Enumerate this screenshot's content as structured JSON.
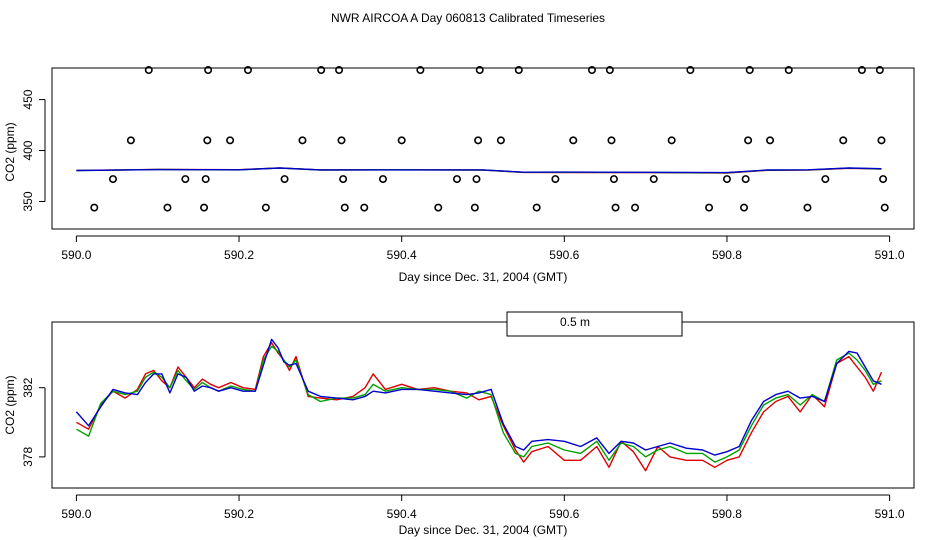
{
  "page_title": "NWR AIRCOA A  Day 060813  Calibrated Timeseries",
  "colors": {
    "red": "#dd0000",
    "green": "#00a000",
    "blue": "#0000cc",
    "axis": "#000000"
  },
  "chart_data": [
    {
      "type": "scatter+line",
      "title": "",
      "xlabel": "Day since Dec. 31, 2004 (GMT)",
      "ylabel": "CO2 (ppm)",
      "xlim": [
        589.97,
        591.03
      ],
      "ylim": [
        323,
        481
      ],
      "x_ticks": [
        590.0,
        590.2,
        590.4,
        590.6,
        590.8,
        591.0
      ],
      "x_tick_labels": [
        "590.0",
        "590.2",
        "590.4",
        "590.6",
        "590.8",
        "591.0"
      ],
      "y_ticks": [
        350,
        400,
        450
      ],
      "y_tick_labels": [
        "350",
        "400",
        "450"
      ],
      "scatter_points": [
        {
          "x": 590.022,
          "y": 344
        },
        {
          "x": 590.045,
          "y": 372
        },
        {
          "x": 590.067,
          "y": 410
        },
        {
          "x": 590.089,
          "y": 479
        },
        {
          "x": 590.112,
          "y": 344
        },
        {
          "x": 590.134,
          "y": 372
        },
        {
          "x": 590.157,
          "y": 344
        },
        {
          "x": 590.159,
          "y": 372
        },
        {
          "x": 590.161,
          "y": 410
        },
        {
          "x": 590.162,
          "y": 479
        },
        {
          "x": 590.189,
          "y": 410
        },
        {
          "x": 590.211,
          "y": 479
        },
        {
          "x": 590.233,
          "y": 344
        },
        {
          "x": 590.256,
          "y": 372
        },
        {
          "x": 590.278,
          "y": 410
        },
        {
          "x": 590.301,
          "y": 479
        },
        {
          "x": 590.323,
          "y": 479
        },
        {
          "x": 590.326,
          "y": 410
        },
        {
          "x": 590.328,
          "y": 372
        },
        {
          "x": 590.33,
          "y": 344
        },
        {
          "x": 590.354,
          "y": 344
        },
        {
          "x": 590.377,
          "y": 372
        },
        {
          "x": 590.4,
          "y": 410
        },
        {
          "x": 590.423,
          "y": 479
        },
        {
          "x": 590.445,
          "y": 344
        },
        {
          "x": 590.468,
          "y": 372
        },
        {
          "x": 590.49,
          "y": 344
        },
        {
          "x": 590.492,
          "y": 372
        },
        {
          "x": 590.494,
          "y": 410
        },
        {
          "x": 590.496,
          "y": 479
        },
        {
          "x": 590.522,
          "y": 410
        },
        {
          "x": 590.544,
          "y": 479
        },
        {
          "x": 590.566,
          "y": 344
        },
        {
          "x": 590.589,
          "y": 372
        },
        {
          "x": 590.611,
          "y": 410
        },
        {
          "x": 590.634,
          "y": 479
        },
        {
          "x": 590.656,
          "y": 479
        },
        {
          "x": 590.658,
          "y": 410
        },
        {
          "x": 590.661,
          "y": 372
        },
        {
          "x": 590.663,
          "y": 344
        },
        {
          "x": 590.687,
          "y": 344
        },
        {
          "x": 590.71,
          "y": 372
        },
        {
          "x": 590.732,
          "y": 410
        },
        {
          "x": 590.755,
          "y": 479
        },
        {
          "x": 590.778,
          "y": 344
        },
        {
          "x": 590.8,
          "y": 372
        },
        {
          "x": 590.821,
          "y": 344
        },
        {
          "x": 590.823,
          "y": 372
        },
        {
          "x": 590.826,
          "y": 410
        },
        {
          "x": 590.828,
          "y": 479
        },
        {
          "x": 590.853,
          "y": 410
        },
        {
          "x": 590.876,
          "y": 479
        },
        {
          "x": 590.899,
          "y": 344
        },
        {
          "x": 590.921,
          "y": 372
        },
        {
          "x": 590.943,
          "y": 410
        },
        {
          "x": 590.966,
          "y": 479
        },
        {
          "x": 590.988,
          "y": 479
        },
        {
          "x": 590.99,
          "y": 410
        },
        {
          "x": 590.992,
          "y": 372
        },
        {
          "x": 590.994,
          "y": 344
        }
      ],
      "series": [
        {
          "name": "red",
          "color": "#dd0000",
          "x": [
            590.0,
            590.1,
            590.2,
            590.25,
            590.3,
            590.4,
            590.5,
            590.55,
            590.6,
            590.7,
            590.8,
            590.85,
            590.9,
            590.95,
            590.99
          ],
          "y": [
            380.5,
            381.5,
            381.2,
            383.0,
            381.0,
            381.2,
            380.8,
            378.5,
            378.4,
            378.3,
            378.0,
            380.6,
            380.8,
            382.6,
            381.8
          ]
        },
        {
          "name": "green",
          "color": "#00a000",
          "x": [
            590.0,
            590.1,
            590.2,
            590.25,
            590.3,
            590.4,
            590.5,
            590.55,
            590.6,
            590.7,
            590.8,
            590.85,
            590.9,
            590.95,
            590.99
          ],
          "y": [
            380.3,
            381.4,
            381.0,
            382.8,
            380.9,
            381.1,
            380.9,
            378.6,
            378.6,
            378.5,
            378.2,
            380.8,
            381.0,
            382.8,
            382.0
          ]
        },
        {
          "name": "blue",
          "color": "#0000cc",
          "x": [
            590.0,
            590.1,
            590.2,
            590.25,
            590.3,
            590.4,
            590.5,
            590.55,
            590.6,
            590.7,
            590.8,
            590.85,
            590.9,
            590.95,
            590.99
          ],
          "y": [
            380.4,
            381.3,
            381.1,
            382.9,
            381.0,
            381.0,
            381.0,
            378.7,
            378.8,
            378.6,
            378.3,
            380.9,
            381.1,
            382.9,
            382.2
          ]
        }
      ]
    },
    {
      "type": "line",
      "title": "",
      "xlabel": "Day since Dec. 31, 2004 (GMT)",
      "ylabel": "CO2 (ppm)",
      "xlim": [
        589.97,
        591.03
      ],
      "ylim": [
        376.2,
        385.8
      ],
      "x_ticks": [
        590.0,
        590.2,
        590.4,
        590.6,
        590.8,
        591.0
      ],
      "x_tick_labels": [
        "590.0",
        "590.2",
        "590.4",
        "590.6",
        "590.8",
        "591.0"
      ],
      "y_ticks": [
        378,
        382
      ],
      "y_tick_labels": [
        "378",
        "382"
      ],
      "legend_text": "0.5 m",
      "legend_position": "top-center",
      "series": [
        {
          "name": "red",
          "color": "#dd0000",
          "x": [
            590.0,
            590.015,
            590.03,
            590.045,
            590.06,
            590.075,
            590.085,
            590.095,
            590.105,
            590.115,
            590.125,
            590.135,
            590.145,
            590.155,
            590.165,
            590.175,
            590.19,
            590.205,
            590.22,
            590.23,
            590.24,
            590.248,
            590.255,
            590.262,
            590.27,
            590.285,
            590.3,
            590.32,
            590.34,
            590.355,
            590.365,
            590.38,
            590.4,
            590.42,
            590.44,
            590.46,
            590.48,
            590.495,
            590.51,
            590.525,
            590.54,
            590.55,
            590.56,
            590.58,
            590.6,
            590.62,
            590.64,
            590.655,
            590.67,
            590.685,
            590.7,
            590.715,
            590.73,
            590.75,
            590.77,
            590.785,
            590.8,
            590.815,
            590.83,
            590.845,
            590.86,
            590.875,
            590.89,
            590.905,
            590.92,
            590.935,
            590.95,
            590.96,
            590.97,
            590.98,
            590.99
          ],
          "y": [
            380.0,
            379.6,
            381.0,
            381.8,
            381.4,
            381.9,
            382.8,
            383.0,
            382.4,
            382.0,
            383.2,
            382.6,
            382.0,
            382.5,
            382.2,
            382.0,
            382.3,
            382.0,
            381.9,
            383.8,
            384.6,
            384.0,
            383.6,
            383.0,
            383.8,
            381.5,
            381.4,
            381.3,
            381.5,
            382.0,
            382.8,
            381.9,
            382.2,
            381.9,
            382.0,
            381.8,
            381.7,
            381.3,
            381.5,
            379.8,
            378.4,
            377.7,
            378.3,
            378.6,
            377.8,
            377.8,
            378.6,
            377.4,
            378.9,
            378.3,
            377.2,
            378.6,
            378.0,
            377.8,
            377.8,
            377.4,
            377.8,
            378.0,
            379.4,
            380.6,
            381.2,
            381.5,
            380.6,
            381.6,
            380.9,
            383.4,
            383.8,
            383.2,
            382.6,
            381.8,
            382.9
          ]
        },
        {
          "name": "green",
          "color": "#00a000",
          "x": [
            590.0,
            590.015,
            590.03,
            590.045,
            590.06,
            590.075,
            590.085,
            590.095,
            590.105,
            590.115,
            590.125,
            590.135,
            590.145,
            590.155,
            590.165,
            590.175,
            590.19,
            590.205,
            590.22,
            590.23,
            590.24,
            590.248,
            590.255,
            590.262,
            590.27,
            590.285,
            590.3,
            590.32,
            590.34,
            590.355,
            590.365,
            590.38,
            590.4,
            590.42,
            590.44,
            590.46,
            590.48,
            590.495,
            590.51,
            590.525,
            590.54,
            590.55,
            590.56,
            590.58,
            590.6,
            590.62,
            590.64,
            590.655,
            590.67,
            590.685,
            590.7,
            590.715,
            590.73,
            590.75,
            590.77,
            590.785,
            590.8,
            590.815,
            590.83,
            590.845,
            590.86,
            590.875,
            590.89,
            590.905,
            590.92,
            590.935,
            590.95,
            590.96,
            590.97,
            590.98,
            590.99
          ],
          "y": [
            379.6,
            379.2,
            381.1,
            381.8,
            381.6,
            381.8,
            382.6,
            382.9,
            382.6,
            382.0,
            383.0,
            382.4,
            381.9,
            382.3,
            382.0,
            381.8,
            382.1,
            381.9,
            381.8,
            383.6,
            384.4,
            384.1,
            383.6,
            383.2,
            383.6,
            381.6,
            381.2,
            381.4,
            381.4,
            381.6,
            382.2,
            381.8,
            382.0,
            381.9,
            381.9,
            381.8,
            381.4,
            381.8,
            381.6,
            379.4,
            378.2,
            378.0,
            378.6,
            378.8,
            378.4,
            378.2,
            378.9,
            377.8,
            378.8,
            378.6,
            378.0,
            378.4,
            378.6,
            378.2,
            378.2,
            377.7,
            378.0,
            378.4,
            379.8,
            381.0,
            381.4,
            381.6,
            381.0,
            381.6,
            381.2,
            383.6,
            384.0,
            383.6,
            383.0,
            382.2,
            382.4
          ]
        },
        {
          "name": "blue",
          "color": "#0000cc",
          "x": [
            590.0,
            590.015,
            590.03,
            590.045,
            590.06,
            590.075,
            590.085,
            590.095,
            590.105,
            590.115,
            590.125,
            590.135,
            590.145,
            590.155,
            590.165,
            590.175,
            590.19,
            590.205,
            590.22,
            590.23,
            590.24,
            590.248,
            590.255,
            590.262,
            590.27,
            590.285,
            590.3,
            590.32,
            590.34,
            590.355,
            590.365,
            590.38,
            590.4,
            590.42,
            590.44,
            590.46,
            590.48,
            590.495,
            590.51,
            590.525,
            590.54,
            590.55,
            590.56,
            590.58,
            590.6,
            590.62,
            590.64,
            590.655,
            590.67,
            590.685,
            590.7,
            590.715,
            590.73,
            590.75,
            590.77,
            590.785,
            590.8,
            590.815,
            590.83,
            590.845,
            590.86,
            590.875,
            590.89,
            590.905,
            590.92,
            590.935,
            590.95,
            590.96,
            590.97,
            590.98,
            590.99
          ],
          "y": [
            380.6,
            379.8,
            380.9,
            381.9,
            381.7,
            381.6,
            382.3,
            382.8,
            382.8,
            381.7,
            382.8,
            382.6,
            381.8,
            382.1,
            382.0,
            381.8,
            382.0,
            381.8,
            381.8,
            383.3,
            384.8,
            384.3,
            383.5,
            383.3,
            383.4,
            381.8,
            381.5,
            381.4,
            381.3,
            381.5,
            381.8,
            381.7,
            381.9,
            381.9,
            381.8,
            381.7,
            381.6,
            381.7,
            381.9,
            379.9,
            378.6,
            378.4,
            378.9,
            379.0,
            378.9,
            378.6,
            379.1,
            378.2,
            378.9,
            378.8,
            378.4,
            378.6,
            378.8,
            378.5,
            378.4,
            378.1,
            378.3,
            378.6,
            380.1,
            381.2,
            381.6,
            381.8,
            381.4,
            381.5,
            381.2,
            383.4,
            384.1,
            384.0,
            383.2,
            382.4,
            382.2
          ]
        }
      ]
    }
  ]
}
